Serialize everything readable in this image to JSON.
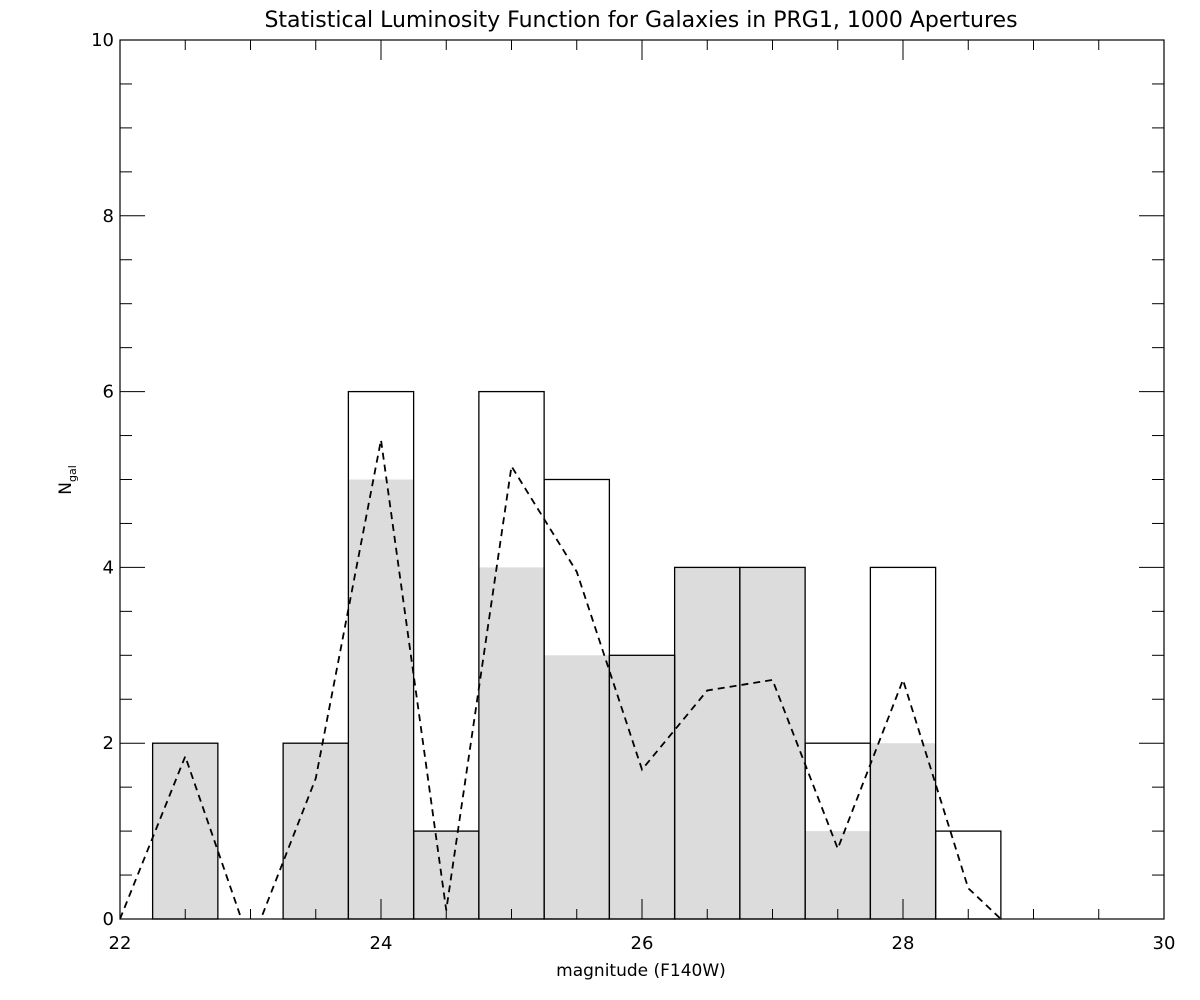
{
  "chart_data": {
    "type": "bar",
    "title": "Statistical Luminosity Function for Galaxies in PRG1, 1000 Apertures",
    "xlabel": "magnitude (F140W)",
    "ylabel": {
      "main": "N",
      "sub": "gal"
    },
    "xlim": [
      22,
      30
    ],
    "ylim": [
      0,
      10
    ],
    "x_ticks": [
      "22",
      "24",
      "26",
      "28",
      "30"
    ],
    "y_ticks": [
      "0",
      "2",
      "4",
      "6",
      "8",
      "10"
    ],
    "bin_width": 0.5,
    "bin_centers": [
      22.5,
      23.0,
      23.5,
      24.0,
      24.5,
      25.0,
      25.5,
      26.0,
      26.5,
      27.0,
      27.5,
      28.0,
      28.5
    ],
    "series": [
      {
        "kind": "outline-histogram",
        "values": [
          2,
          0,
          2,
          6,
          1,
          6,
          5,
          3,
          4,
          4,
          2,
          4,
          1
        ]
      },
      {
        "kind": "filled-histogram",
        "fill": "#dcdcdc",
        "values": [
          2,
          0,
          2,
          5,
          1,
          4,
          3,
          3,
          4,
          4,
          1,
          2,
          0
        ]
      },
      {
        "kind": "dashed-line",
        "x": [
          22.0,
          22.5,
          23.0,
          23.5,
          24.0,
          24.5,
          25.0,
          25.5,
          26.0,
          26.5,
          27.0,
          27.5,
          28.0,
          28.5,
          28.75
        ],
        "values": [
          0.0,
          1.85,
          -0.3,
          1.6,
          5.45,
          0.1,
          5.15,
          3.95,
          1.7,
          2.6,
          2.72,
          0.8,
          2.72,
          0.35,
          0.0
        ]
      }
    ],
    "grid": false,
    "legend": "none",
    "colors": {
      "line": "#000000",
      "fill": "#dcdcdc",
      "background": "#ffffff"
    }
  }
}
